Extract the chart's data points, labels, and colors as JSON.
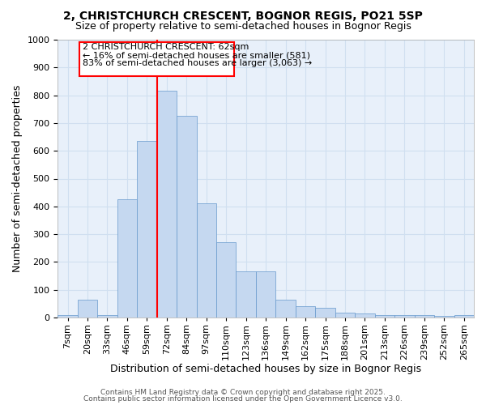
{
  "title": "2, CHRISTCHURCH CRESCENT, BOGNOR REGIS, PO21 5SP",
  "subtitle": "Size of property relative to semi-detached houses in Bognor Regis",
  "xlabel": "Distribution of semi-detached houses by size in Bognor Regis",
  "ylabel": "Number of semi-detached properties",
  "bar_labels": [
    "7sqm",
    "20sqm",
    "33sqm",
    "46sqm",
    "59sqm",
    "72sqm",
    "84sqm",
    "97sqm",
    "110sqm",
    "123sqm",
    "136sqm",
    "149sqm",
    "162sqm",
    "175sqm",
    "188sqm",
    "201sqm",
    "213sqm",
    "226sqm",
    "239sqm",
    "252sqm",
    "265sqm"
  ],
  "bar_heights": [
    8,
    65,
    8,
    425,
    635,
    815,
    725,
    410,
    270,
    165,
    165,
    65,
    42,
    35,
    18,
    15,
    8,
    10,
    8,
    5,
    8
  ],
  "bar_color": "#c5d8f0",
  "bar_edge_color": "#6699cc",
  "grid_color": "#d0dff0",
  "bg_color": "#e8f0fa",
  "vline_color": "red",
  "annotation_title": "2 CHRISTCHURCH CRESCENT: 62sqm",
  "annotation_line1": "← 16% of semi-detached houses are smaller (581)",
  "annotation_line2": "83% of semi-detached houses are larger (3,063) →",
  "annotation_box_color": "red",
  "ylim": [
    0,
    1000
  ],
  "yticks": [
    0,
    100,
    200,
    300,
    400,
    500,
    600,
    700,
    800,
    900,
    1000
  ],
  "footer_line1": "Contains HM Land Registry data © Crown copyright and database right 2025.",
  "footer_line2": "Contains public sector information licensed under the Open Government Licence v3.0.",
  "title_fontsize": 10,
  "subtitle_fontsize": 9,
  "axis_label_fontsize": 9,
  "tick_fontsize": 8,
  "annotation_fontsize": 8,
  "footer_fontsize": 6.5
}
